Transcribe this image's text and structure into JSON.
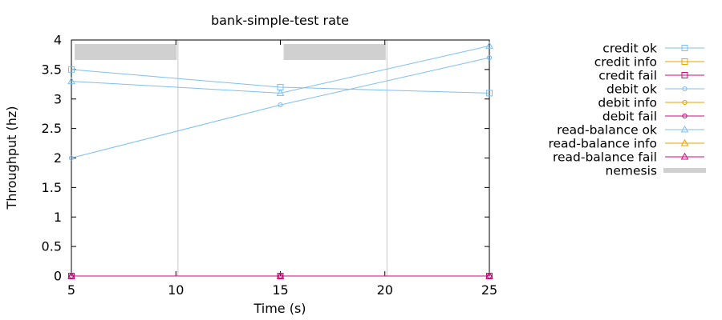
{
  "chart_data": {
    "type": "line",
    "title": "bank-simple-test rate",
    "xlabel": "Time (s)",
    "ylabel": "Throughput (hz)",
    "xlim": [
      5,
      25
    ],
    "ylim": [
      0,
      4
    ],
    "x_ticks": [
      "5",
      "10",
      "15",
      "20",
      "25"
    ],
    "y_ticks": [
      "0",
      "0.5",
      "1",
      "1.5",
      "2",
      "2.5",
      "3",
      "3.5",
      "4"
    ],
    "legend_position": "right",
    "colors": {
      "ok": "#7fbfef",
      "info": "#e8a202",
      "fail": "#cc0a7d",
      "nemesis": "#d0d0d0",
      "grid": "#c8c8c8"
    },
    "series": [
      {
        "name": "credit ok",
        "marker": "square",
        "status": "ok",
        "x": [
          5,
          15,
          25
        ],
        "y": [
          3.5,
          3.2,
          3.1
        ]
      },
      {
        "name": "credit info",
        "marker": "square",
        "status": "info",
        "x": [],
        "y": []
      },
      {
        "name": "credit fail",
        "marker": "square",
        "status": "fail",
        "x": [
          5,
          15,
          25
        ],
        "y": [
          0,
          0,
          0
        ]
      },
      {
        "name": "debit ok",
        "marker": "circle",
        "status": "ok",
        "x": [
          5,
          15,
          25
        ],
        "y": [
          2.0,
          2.9,
          3.7
        ]
      },
      {
        "name": "debit info",
        "marker": "circle",
        "status": "info",
        "x": [],
        "y": []
      },
      {
        "name": "debit fail",
        "marker": "circle",
        "status": "fail",
        "x": [
          5,
          15,
          25
        ],
        "y": [
          0,
          0,
          0
        ]
      },
      {
        "name": "read-balance ok",
        "marker": "triangle",
        "status": "ok",
        "x": [
          5,
          15,
          25
        ],
        "y": [
          3.3,
          3.1,
          3.9
        ]
      },
      {
        "name": "read-balance info",
        "marker": "triangle",
        "status": "info",
        "x": [],
        "y": []
      },
      {
        "name": "read-balance fail",
        "marker": "triangle",
        "status": "fail",
        "x": [
          5,
          15,
          25
        ],
        "y": [
          0,
          0,
          0
        ]
      }
    ],
    "nemesis": {
      "name": "nemesis",
      "intervals": [
        [
          5.1,
          10.1
        ],
        [
          15.1,
          20.1
        ]
      ],
      "lines": [
        10.1,
        20.1
      ]
    }
  }
}
